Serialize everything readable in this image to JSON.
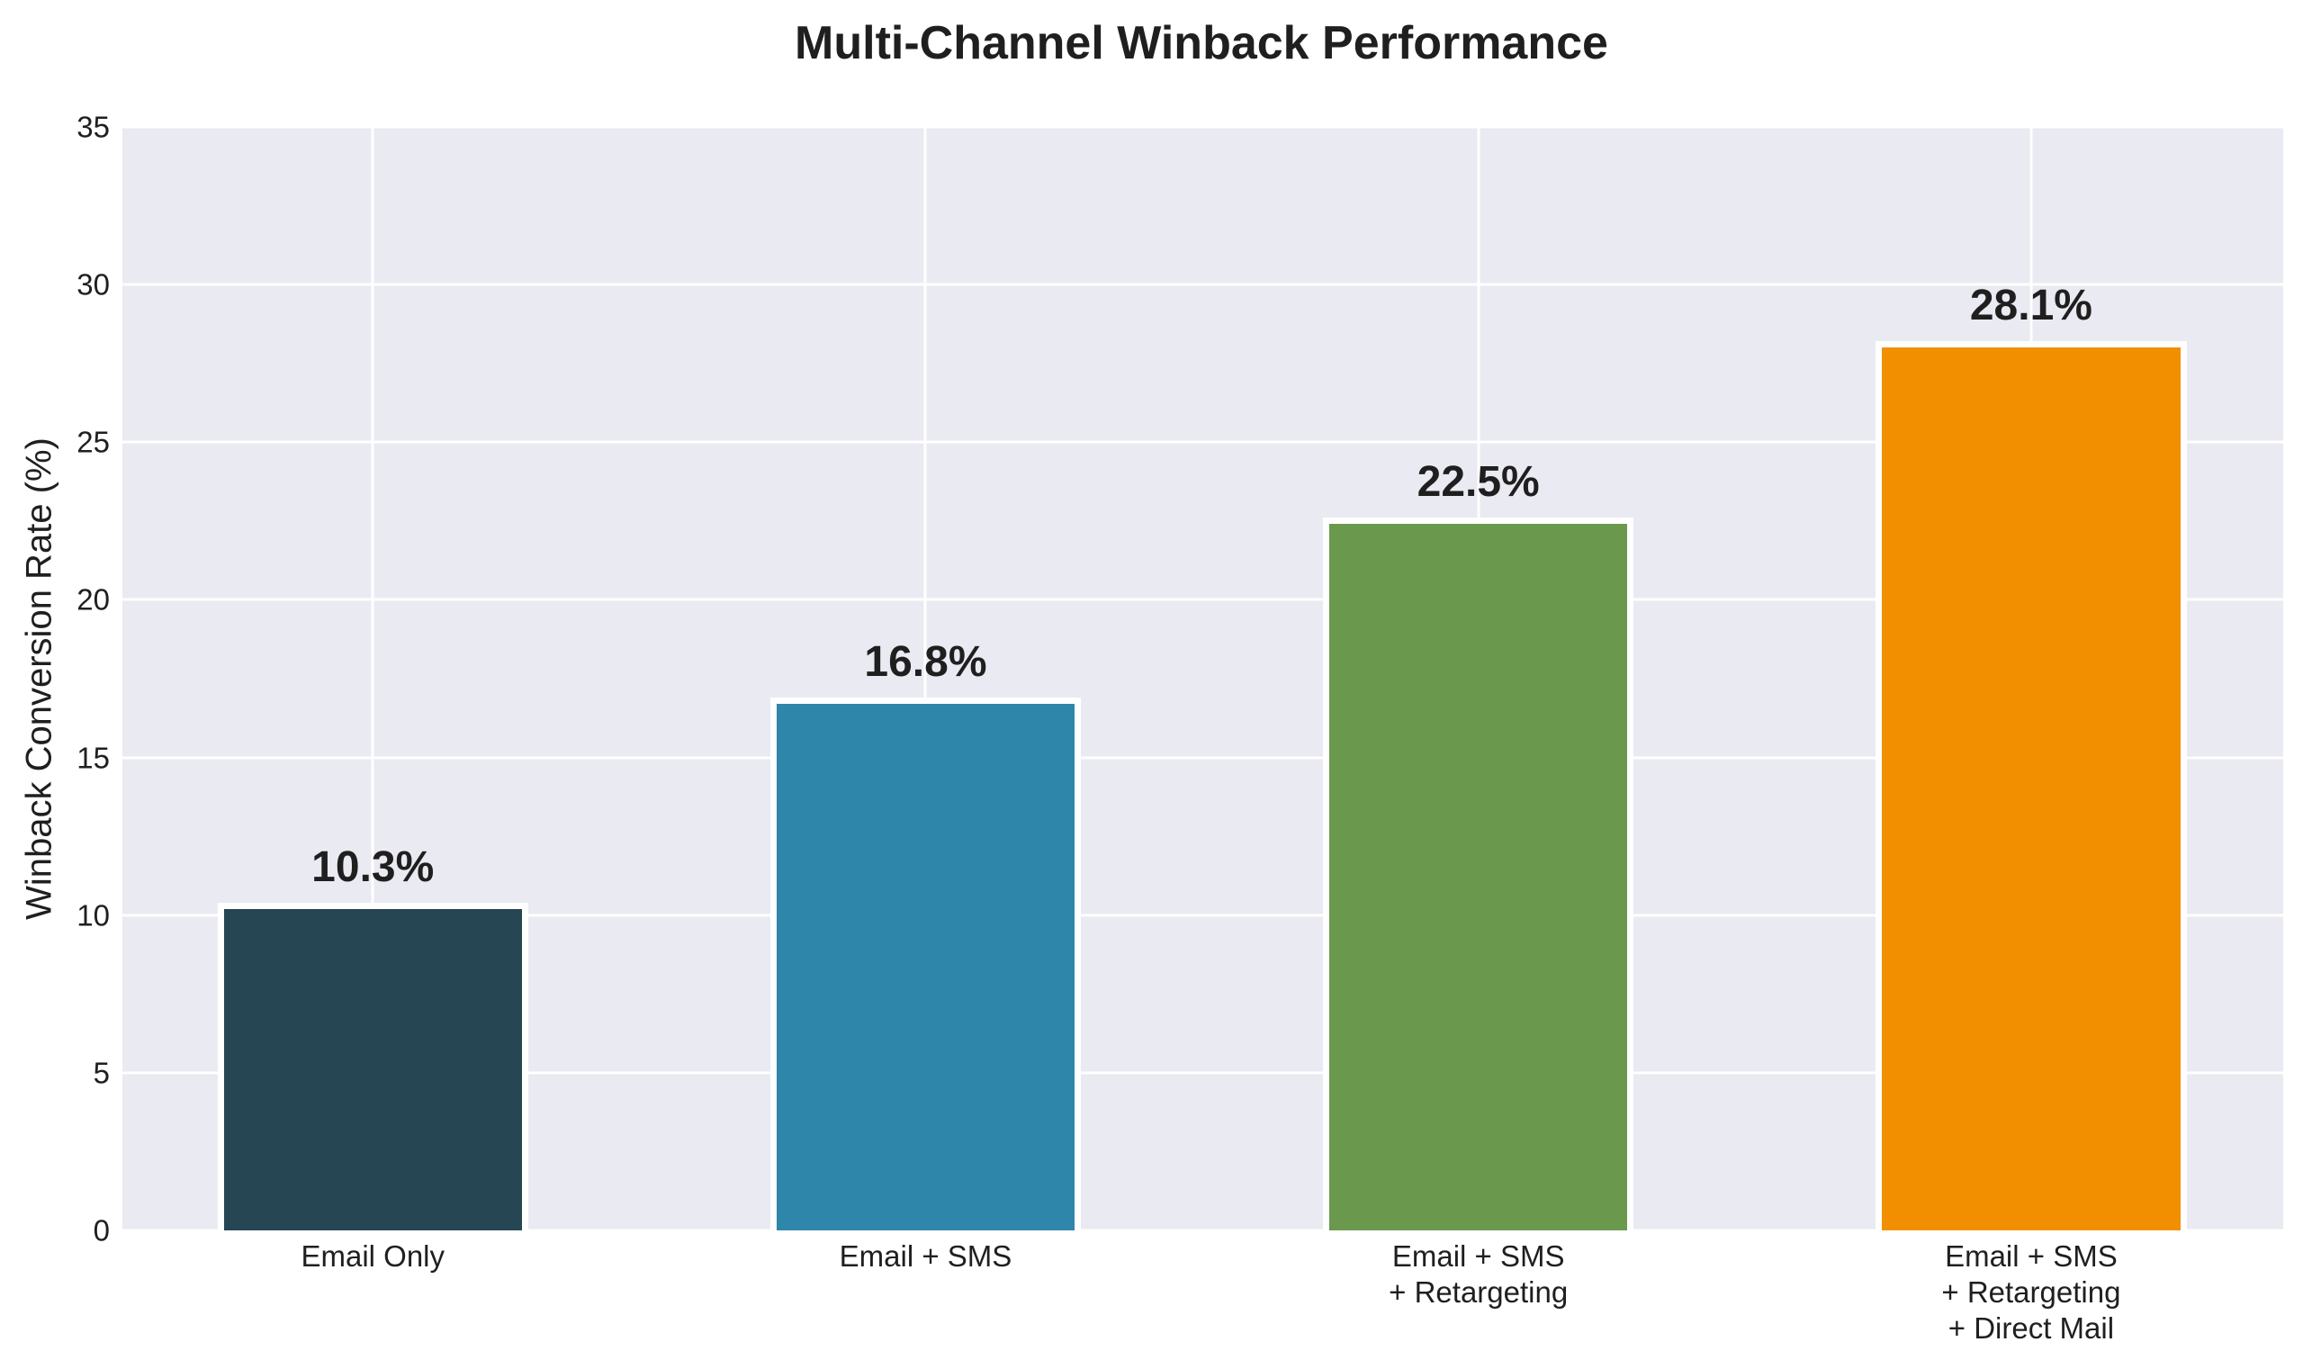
{
  "chart_data": {
    "type": "bar",
    "title": "Multi-Channel Winback Performance",
    "xlabel": "",
    "ylabel": "Winback Conversion Rate (%)",
    "ylim": [
      0,
      35
    ],
    "yticks": [
      0,
      5,
      10,
      15,
      20,
      25,
      30,
      35
    ],
    "grid": true,
    "legend": null,
    "categories": [
      "Email Only",
      "Email + SMS",
      "Email + SMS\n+ Retargeting",
      "Email + SMS\n+ Retargeting\n+ Direct Mail"
    ],
    "category_lines": [
      [
        "Email Only"
      ],
      [
        "Email + SMS"
      ],
      [
        "Email + SMS",
        "+ Retargeting"
      ],
      [
        "Email + SMS",
        "+ Retargeting",
        "+ Direct Mail"
      ]
    ],
    "values": [
      10.3,
      16.8,
      22.5,
      28.1
    ],
    "value_labels": [
      "10.3%",
      "16.8%",
      "22.5%",
      "28.1%"
    ],
    "colors": [
      "#264653",
      "#2E86AB",
      "#6A994E",
      "#F18F01"
    ]
  },
  "style": {
    "plot_background": "#EAEAF2",
    "grid_color": "#FFFFFF",
    "bar_edge_color": "#FFFFFF",
    "text_color": "#1F1F1F"
  }
}
